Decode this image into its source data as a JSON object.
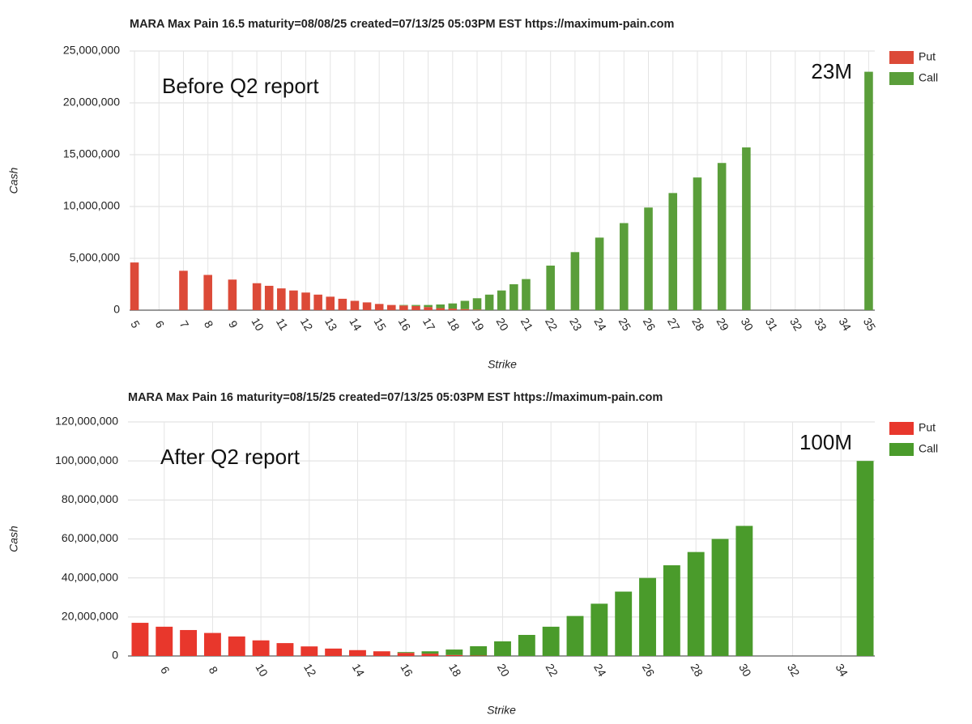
{
  "chart_data": [
    {
      "type": "bar",
      "stacked": true,
      "title": "MARA Max Pain 16.5 maturity=08/08/25 created=07/13/25 05:03PM EST https://maximum-pain.com",
      "x_label": "Strike",
      "y_label": "Cash",
      "annotations": [
        "Before Q2 report",
        "23M"
      ],
      "x": [
        5,
        7,
        8,
        9,
        10,
        10.5,
        11,
        11.5,
        12,
        12.5,
        13,
        13.5,
        14,
        14.5,
        15,
        15.5,
        16,
        16.5,
        17,
        17.5,
        18,
        18.5,
        19,
        19.5,
        20,
        20.5,
        21,
        22,
        23,
        24,
        25,
        26,
        27,
        28,
        29,
        30,
        35
      ],
      "series": [
        {
          "name": "Put",
          "color": "#dc4a38",
          "values": [
            4600000,
            3800000,
            3400000,
            2950000,
            2600000,
            2350000,
            2100000,
            1900000,
            1700000,
            1500000,
            1300000,
            1100000,
            900000,
            750000,
            600000,
            500000,
            450000,
            400000,
            300000,
            200000,
            150000,
            100000,
            50000,
            0,
            0,
            0,
            0,
            0,
            0,
            0,
            0,
            0,
            0,
            0,
            0,
            0,
            0
          ]
        },
        {
          "name": "Call",
          "color": "#5a9e3a",
          "values": [
            0,
            0,
            0,
            0,
            0,
            0,
            0,
            0,
            0,
            0,
            0,
            0,
            0,
            0,
            0,
            0,
            50000,
            100000,
            200000,
            350000,
            500000,
            800000,
            1100000,
            1500000,
            1900000,
            2500000,
            3000000,
            4300000,
            5600000,
            7000000,
            8400000,
            9900000,
            11300000,
            12800000,
            14200000,
            15700000,
            23000000
          ]
        }
      ],
      "xlim": [
        4.8,
        35.25
      ],
      "xticks": [
        5,
        6,
        7,
        8,
        9,
        10,
        11,
        12,
        13,
        14,
        15,
        16,
        17,
        18,
        19,
        20,
        21,
        22,
        23,
        24,
        25,
        26,
        27,
        28,
        29,
        30,
        31,
        32,
        33,
        34,
        35
      ],
      "ylim": [
        0,
        25000000
      ],
      "yticks": [
        0,
        {
          "value": 5000000,
          "label": "5,000,000"
        },
        {
          "value": 10000000,
          "label": "10,000,000"
        },
        {
          "value": 15000000,
          "label": "15,000,000"
        },
        {
          "value": 20000000,
          "label": "20,000,000"
        },
        {
          "value": 25000000,
          "label": "25,000,000"
        }
      ],
      "grid": true,
      "legend": "top-right"
    },
    {
      "type": "bar",
      "stacked": true,
      "title": "MARA Max Pain 16 maturity=08/15/25 created=07/13/25 05:03PM EST https://maximum-pain.com",
      "x_label": "Strike",
      "y_label": "Cash",
      "annotations": [
        "After Q2 report",
        "100M"
      ],
      "x": [
        5,
        6,
        7,
        8,
        9,
        10,
        11,
        12,
        13,
        14,
        15,
        16,
        17,
        18,
        19,
        20,
        21,
        22,
        23,
        24,
        25,
        26,
        27,
        28,
        29,
        30,
        35
      ],
      "series": [
        {
          "name": "Put",
          "color": "#e8372c",
          "values": [
            17000000,
            15000000,
            13300000,
            11800000,
            10000000,
            8000000,
            6600000,
            4900000,
            3800000,
            3000000,
            2400000,
            1600000,
            1200000,
            500000,
            200000,
            0,
            0,
            0,
            0,
            0,
            0,
            0,
            0,
            0,
            0,
            0,
            0
          ]
        },
        {
          "name": "Call",
          "color": "#4a9b2b",
          "values": [
            0,
            0,
            0,
            0,
            0,
            0,
            0,
            0,
            0,
            0,
            0,
            400000,
            1200000,
            2800000,
            4800000,
            7500000,
            10800000,
            15000000,
            20500000,
            26800000,
            33000000,
            40000000,
            46500000,
            53300000,
            60000000,
            66700000,
            100000000
          ]
        }
      ],
      "xlim": [
        4.5,
        35.4
      ],
      "xticks": [
        6,
        8,
        10,
        12,
        14,
        16,
        18,
        20,
        22,
        24,
        26,
        28,
        30,
        32,
        34
      ],
      "ylim": [
        0,
        120000000
      ],
      "yticks": [
        0,
        {
          "value": 20000000,
          "label": "20,000,000"
        },
        {
          "value": 40000000,
          "label": "40,000,000"
        },
        {
          "value": 60000000,
          "label": "60,000,000"
        },
        {
          "value": 80000000,
          "label": "80,000,000"
        },
        {
          "value": 100000000,
          "label": "100,000,000"
        },
        {
          "value": 120000000,
          "label": "120,000,000"
        }
      ],
      "grid": true,
      "legend": "top-right"
    }
  ]
}
